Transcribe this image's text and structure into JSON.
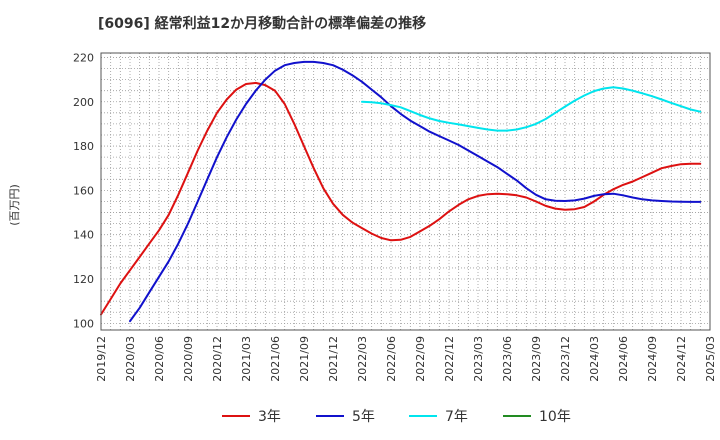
{
  "chart_data": {
    "type": "line",
    "title": "[6096]  経常利益12か月移動合計の標準偏差の推移",
    "ylabel": "(百万円)",
    "xlabel": "",
    "ylim": [
      97,
      222
    ],
    "yticks": [
      100,
      120,
      140,
      160,
      180,
      200,
      220
    ],
    "x_ticks": [
      "2019/12",
      "2020/03",
      "2020/06",
      "2020/09",
      "2020/12",
      "2021/03",
      "2021/06",
      "2021/09",
      "2021/12",
      "2022/03",
      "2022/06",
      "2022/09",
      "2022/12",
      "2023/03",
      "2023/06",
      "2023/09",
      "2023/12",
      "2024/03",
      "2024/06",
      "2024/09",
      "2024/12",
      "2025/03"
    ],
    "grid": true,
    "legend_position": "bottom",
    "series": [
      {
        "name": "3年",
        "color": "#dd1111",
        "points": [
          [
            "2019/12",
            104
          ],
          [
            "2020/01",
            111
          ],
          [
            "2020/02",
            118
          ],
          [
            "2020/03",
            124
          ],
          [
            "2020/04",
            130
          ],
          [
            "2020/05",
            136
          ],
          [
            "2020/06",
            142
          ],
          [
            "2020/07",
            149
          ],
          [
            "2020/08",
            158
          ],
          [
            "2020/09",
            168
          ],
          [
            "2020/10",
            178
          ],
          [
            "2020/11",
            187
          ],
          [
            "2020/12",
            195
          ],
          [
            "2021/01",
            201
          ],
          [
            "2021/02",
            205.5
          ],
          [
            "2021/03",
            208
          ],
          [
            "2021/04",
            208.5
          ],
          [
            "2021/05",
            207.5
          ],
          [
            "2021/06",
            205
          ],
          [
            "2021/07",
            199
          ],
          [
            "2021/08",
            190
          ],
          [
            "2021/09",
            180
          ],
          [
            "2021/10",
            170
          ],
          [
            "2021/11",
            161
          ],
          [
            "2021/12",
            154
          ],
          [
            "2022/01",
            149
          ],
          [
            "2022/02",
            145.5
          ],
          [
            "2022/03",
            143
          ],
          [
            "2022/04",
            140.5
          ],
          [
            "2022/05",
            138.5
          ],
          [
            "2022/06",
            137.5
          ],
          [
            "2022/07",
            137.7
          ],
          [
            "2022/08",
            139
          ],
          [
            "2022/09",
            141.5
          ],
          [
            "2022/10",
            144
          ],
          [
            "2022/11",
            147
          ],
          [
            "2022/12",
            150.5
          ],
          [
            "2023/01",
            153.5
          ],
          [
            "2023/02",
            156
          ],
          [
            "2023/03",
            157.5
          ],
          [
            "2023/04",
            158.3
          ],
          [
            "2023/05",
            158.5
          ],
          [
            "2023/06",
            158.3
          ],
          [
            "2023/07",
            157.8
          ],
          [
            "2023/08",
            156.8
          ],
          [
            "2023/09",
            155
          ],
          [
            "2023/10",
            153
          ],
          [
            "2023/11",
            151.8
          ],
          [
            "2023/12",
            151.3
          ],
          [
            "2024/01",
            151.5
          ],
          [
            "2024/02",
            152.5
          ],
          [
            "2024/03",
            155
          ],
          [
            "2024/04",
            158
          ],
          [
            "2024/05",
            160.5
          ],
          [
            "2024/06",
            162.5
          ],
          [
            "2024/07",
            164
          ],
          [
            "2024/08",
            166
          ],
          [
            "2024/09",
            168
          ],
          [
            "2024/10",
            170
          ],
          [
            "2024/11",
            171
          ],
          [
            "2024/12",
            171.8
          ],
          [
            "2025/01",
            172
          ],
          [
            "2025/02",
            172
          ]
        ]
      },
      {
        "name": "5年",
        "color": "#1111cc",
        "points": [
          [
            "2020/03",
            101
          ],
          [
            "2020/04",
            107
          ],
          [
            "2020/05",
            114
          ],
          [
            "2020/06",
            121
          ],
          [
            "2020/07",
            128
          ],
          [
            "2020/08",
            136
          ],
          [
            "2020/09",
            145
          ],
          [
            "2020/10",
            155
          ],
          [
            "2020/11",
            165
          ],
          [
            "2020/12",
            175
          ],
          [
            "2021/01",
            184
          ],
          [
            "2021/02",
            192
          ],
          [
            "2021/03",
            199
          ],
          [
            "2021/04",
            205
          ],
          [
            "2021/05",
            210
          ],
          [
            "2021/06",
            214
          ],
          [
            "2021/07",
            216.5
          ],
          [
            "2021/08",
            217.5
          ],
          [
            "2021/09",
            218
          ],
          [
            "2021/10",
            218
          ],
          [
            "2021/11",
            217.5
          ],
          [
            "2021/12",
            216.5
          ],
          [
            "2022/01",
            214.5
          ],
          [
            "2022/02",
            212
          ],
          [
            "2022/03",
            209
          ],
          [
            "2022/04",
            205.5
          ],
          [
            "2022/05",
            202
          ],
          [
            "2022/06",
            198
          ],
          [
            "2022/07",
            194.5
          ],
          [
            "2022/08",
            191.5
          ],
          [
            "2022/09",
            189
          ],
          [
            "2022/10",
            186.5
          ],
          [
            "2022/11",
            184.5
          ],
          [
            "2022/12",
            182.5
          ],
          [
            "2023/01",
            180.5
          ],
          [
            "2023/02",
            178
          ],
          [
            "2023/03",
            175.5
          ],
          [
            "2023/04",
            173
          ],
          [
            "2023/05",
            170.5
          ],
          [
            "2023/06",
            167.5
          ],
          [
            "2023/07",
            164.5
          ],
          [
            "2023/08",
            161
          ],
          [
            "2023/09",
            158
          ],
          [
            "2023/10",
            156
          ],
          [
            "2023/11",
            155.3
          ],
          [
            "2023/12",
            155.2
          ],
          [
            "2024/01",
            155.5
          ],
          [
            "2024/02",
            156.3
          ],
          [
            "2024/03",
            157.5
          ],
          [
            "2024/04",
            158.3
          ],
          [
            "2024/05",
            158.5
          ],
          [
            "2024/06",
            157.8
          ],
          [
            "2024/07",
            156.8
          ],
          [
            "2024/08",
            156
          ],
          [
            "2024/09",
            155.5
          ],
          [
            "2024/10",
            155.2
          ],
          [
            "2024/11",
            155
          ],
          [
            "2024/12",
            154.9
          ],
          [
            "2025/01",
            154.8
          ],
          [
            "2025/02",
            154.8
          ]
        ]
      },
      {
        "name": "7年",
        "color": "#00e5ee",
        "points": [
          [
            "2022/03",
            200
          ],
          [
            "2022/04",
            199.8
          ],
          [
            "2022/05",
            199.3
          ],
          [
            "2022/06",
            198.5
          ],
          [
            "2022/07",
            197.5
          ],
          [
            "2022/08",
            195.8
          ],
          [
            "2022/09",
            194
          ],
          [
            "2022/10",
            192.5
          ],
          [
            "2022/11",
            191.3
          ],
          [
            "2022/12",
            190.5
          ],
          [
            "2023/01",
            189.8
          ],
          [
            "2023/02",
            189
          ],
          [
            "2023/03",
            188.2
          ],
          [
            "2023/04",
            187.5
          ],
          [
            "2023/05",
            187
          ],
          [
            "2023/06",
            187
          ],
          [
            "2023/07",
            187.5
          ],
          [
            "2023/08",
            188.5
          ],
          [
            "2023/09",
            190
          ],
          [
            "2023/10",
            192.2
          ],
          [
            "2023/11",
            195
          ],
          [
            "2023/12",
            197.8
          ],
          [
            "2024/01",
            200.5
          ],
          [
            "2024/02",
            202.8
          ],
          [
            "2024/03",
            204.8
          ],
          [
            "2024/04",
            206
          ],
          [
            "2024/05",
            206.5
          ],
          [
            "2024/06",
            206
          ],
          [
            "2024/07",
            205
          ],
          [
            "2024/08",
            203.8
          ],
          [
            "2024/09",
            202.5
          ],
          [
            "2024/10",
            201
          ],
          [
            "2024/11",
            199.5
          ],
          [
            "2024/12",
            198
          ],
          [
            "2025/01",
            196.5
          ],
          [
            "2025/02",
            195.5
          ]
        ]
      },
      {
        "name": "10年",
        "color": "#228b22",
        "points": []
      }
    ]
  }
}
